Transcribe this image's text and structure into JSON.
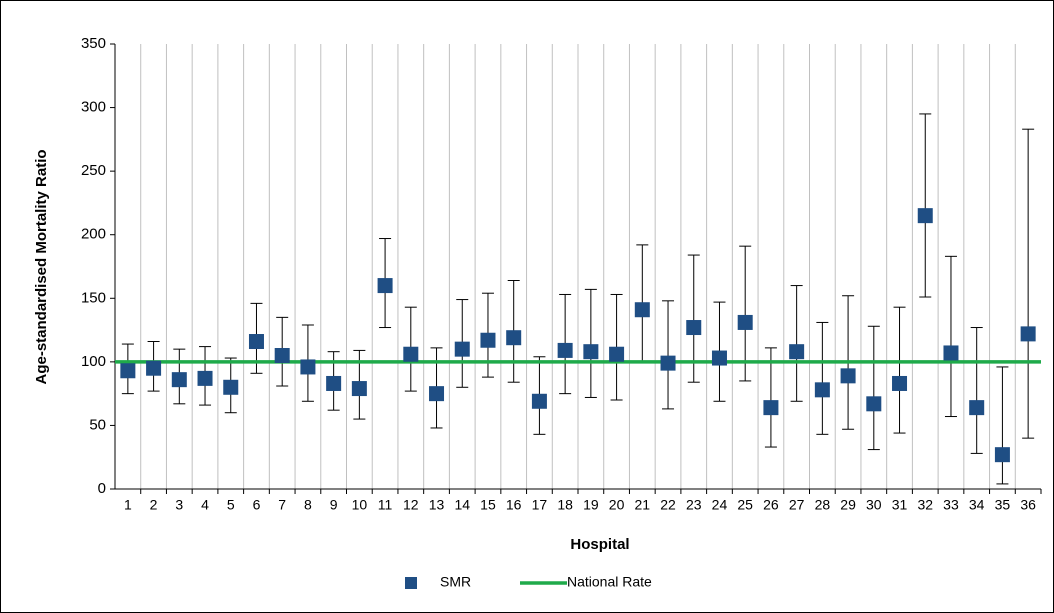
{
  "chart_data": {
    "type": "errorbar",
    "x_label": "Hospital",
    "y_label": "Age-standardised Mortality Ratio",
    "categories": [
      "1",
      "2",
      "3",
      "4",
      "5",
      "6",
      "7",
      "8",
      "9",
      "10",
      "11",
      "12",
      "13",
      "14",
      "15",
      "16",
      "17",
      "18",
      "19",
      "20",
      "21",
      "22",
      "23",
      "24",
      "25",
      "26",
      "27",
      "28",
      "29",
      "30",
      "31",
      "32",
      "33",
      "34",
      "35",
      "36"
    ],
    "series": [
      {
        "name": "SMR",
        "color": "#1f4e84",
        "values": [
          93,
          95,
          86,
          87,
          80,
          116,
          105,
          96,
          83,
          79,
          160,
          106,
          75,
          110,
          117,
          119,
          69,
          109,
          108,
          106,
          141,
          99,
          127,
          103,
          131,
          64,
          108,
          78,
          89,
          67,
          83,
          215,
          107,
          64,
          27,
          122
        ],
        "lower": [
          75,
          77,
          67,
          66,
          60,
          91,
          81,
          69,
          62,
          55,
          127,
          77,
          48,
          80,
          88,
          84,
          43,
          75,
          72,
          70,
          100,
          63,
          84,
          69,
          85,
          33,
          69,
          43,
          47,
          31,
          44,
          151,
          57,
          28,
          4,
          40
        ],
        "upper": [
          114,
          116,
          110,
          112,
          103,
          146,
          135,
          129,
          108,
          109,
          197,
          143,
          111,
          149,
          154,
          164,
          104,
          153,
          157,
          153,
          192,
          148,
          184,
          147,
          191,
          111,
          160,
          131,
          152,
          128,
          143,
          295,
          183,
          127,
          96,
          283
        ]
      }
    ],
    "reference_line": {
      "name": "National Rate",
      "value": 100,
      "color": "#1faa4a"
    },
    "ylim": [
      0,
      350
    ],
    "yticks": [
      0,
      50,
      100,
      150,
      200,
      250,
      300,
      350
    ],
    "grid": true
  }
}
